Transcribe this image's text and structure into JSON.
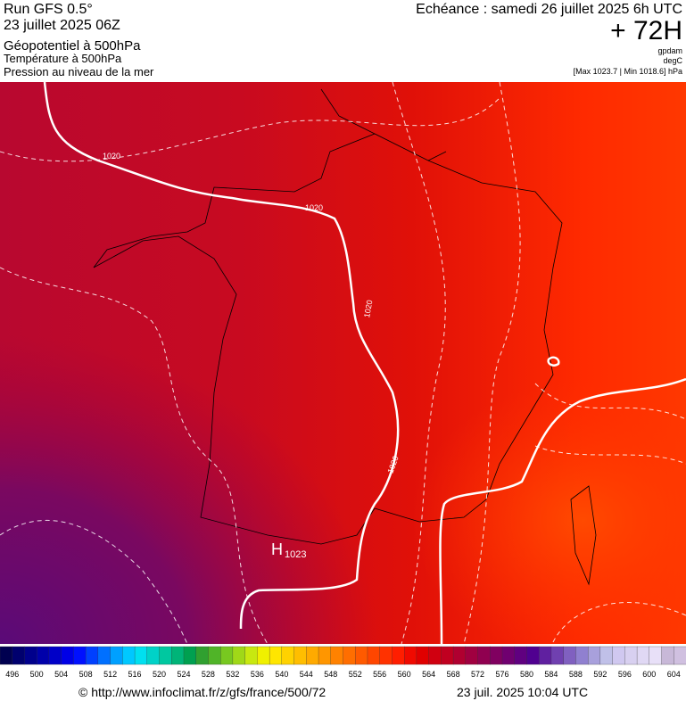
{
  "header": {
    "run": "Run GFS 0.5°",
    "date": "23 juillet 2025 06Z",
    "field1": "Géopotentiel à 500hPa",
    "field2": "Température à 500hPa",
    "field3": "Pression au niveau de la mer",
    "echeance": "Echéance : samedi 26 juillet 2025 6h UTC",
    "lead": "+ 72H",
    "unit1": "gpdam",
    "unit2": "degC",
    "range": "[Max 1023.7 | Min 1018.6] hPa"
  },
  "map": {
    "labels": [
      "1020",
      "1020",
      "1020",
      "1020"
    ],
    "high": "H",
    "high_value": "1023"
  },
  "colorbar": {
    "labels": [
      "496",
      "500",
      "504",
      "508",
      "512",
      "516",
      "520",
      "524",
      "528",
      "532",
      "536",
      "540",
      "544",
      "548",
      "552",
      "556",
      "560",
      "564",
      "568",
      "572",
      "576",
      "580",
      "584",
      "588",
      "592",
      "596",
      "600",
      "604"
    ],
    "colors": [
      "#000050",
      "#00006e",
      "#00008c",
      "#0000aa",
      "#0000c8",
      "#0000e6",
      "#0010ff",
      "#0040ff",
      "#0070ff",
      "#00a0ff",
      "#00c8ff",
      "#00e0f0",
      "#00d2c8",
      "#00c8a0",
      "#00b478",
      "#00a050",
      "#30a030",
      "#50b428",
      "#78c820",
      "#a0d818",
      "#c8e810",
      "#f0f000",
      "#ffe600",
      "#ffd200",
      "#ffbe00",
      "#ffaa00",
      "#ff9600",
      "#ff8200",
      "#ff6e00",
      "#ff5a00",
      "#ff4600",
      "#ff3200",
      "#ff1e00",
      "#f00a00",
      "#e00000",
      "#d00010",
      "#c00020",
      "#b00030",
      "#a00040",
      "#900050",
      "#800060",
      "#700070",
      "#600080",
      "#500090",
      "#6020a0",
      "#7040b0",
      "#8060c0",
      "#9080d0",
      "#a8a0dc",
      "#c0c0e8",
      "#d0c8f0",
      "#d8d0f0",
      "#e0d8f4",
      "#e8e0f8",
      "#c8b8d8",
      "#d0c0e0"
    ]
  },
  "footer": {
    "url": "© http://www.infoclimat.fr/z/gfs/france/500/72",
    "timestamp": "23 juil. 2025 10:04 UTC"
  }
}
